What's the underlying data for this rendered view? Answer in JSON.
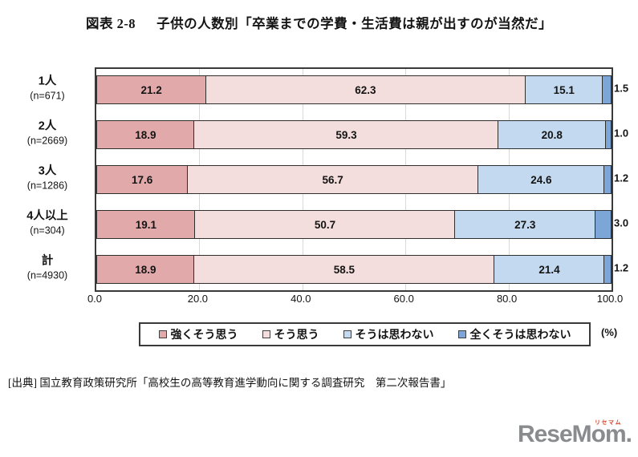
{
  "figure": {
    "label": "図表 2-8",
    "title": "子供の人数別「卒業までの学費・生活費は親が出すのが当然だ」"
  },
  "chart_data": {
    "type": "bar",
    "orientation": "horizontal",
    "stacked": true,
    "categories": [
      "1人",
      "2人",
      "3人",
      "4人以上",
      "計"
    ],
    "sample_sizes": [
      "(n=671)",
      "(n=2669)",
      "(n=1286)",
      "(n=304)",
      "(n=4930)"
    ],
    "series": [
      {
        "name": "強くそう思う",
        "color": "#e2a9ab",
        "values": [
          21.2,
          18.9,
          17.6,
          19.1,
          18.9
        ]
      },
      {
        "name": "そう思う",
        "color": "#f4dedd",
        "values": [
          62.3,
          59.3,
          56.7,
          50.7,
          58.5
        ]
      },
      {
        "name": "そうは思わない",
        "color": "#c3d9ef",
        "values": [
          15.1,
          20.8,
          24.6,
          27.3,
          21.4
        ]
      },
      {
        "name": "全くそうは思わない",
        "color": "#7da6d8",
        "values": [
          1.5,
          1.0,
          1.2,
          3.0,
          1.2
        ]
      }
    ],
    "xlim": [
      0,
      100
    ],
    "x_ticks": [
      0,
      20,
      40,
      60,
      80,
      100
    ],
    "x_tick_labels": [
      "0.0",
      "20.0",
      "40.0",
      "60.0",
      "80.0",
      "100.0"
    ],
    "x_unit": "(%)",
    "grid": true,
    "legend_position": "bottom"
  },
  "source": "[出典]  国立教育政策研究所「高校生の高等教育進学動向に関する調査研究　第二次報告書」",
  "logo": {
    "text": "ReseMom.",
    "ruby": "リセマム"
  },
  "colors": {
    "segment_border": "#2e2e2e",
    "grid": "#d9d9d9",
    "plot_border": "#3a3a3a"
  }
}
